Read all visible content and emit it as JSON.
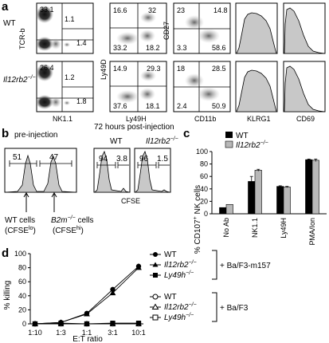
{
  "panels": {
    "a": {
      "label": "a",
      "row_labels": [
        "WT",
        "Il12rb2",
        "−/−"
      ],
      "axes": {
        "p1": {
          "y": "TCR-b",
          "x": "NK1.1"
        },
        "p2": {
          "y": "Ly49D",
          "x": "Ly49H"
        },
        "p3": {
          "y": "CD27",
          "x": "CD11b"
        },
        "p4": {
          "x": "KLRG1"
        },
        "p5": {
          "x": "CD69"
        }
      },
      "wt": {
        "p1": [
          "33.1",
          "1.1",
          "1.4"
        ],
        "p2": [
          "16.6",
          "32",
          "33.2",
          "18.2"
        ],
        "p3": [
          "23",
          "14.8",
          "3.3",
          "58.6"
        ]
      },
      "ko": {
        "p1": [
          "26.4",
          "1.2",
          "1.8"
        ],
        "p2": [
          "14.9",
          "29.3",
          "37.6",
          "18.1"
        ],
        "p3": [
          "18",
          "28.5",
          "2.4",
          "50.9"
        ]
      }
    },
    "b": {
      "label": "b",
      "pre_title": "pre-injection",
      "post_title": "72 hours post-injection",
      "wt_header": "WT",
      "ko_header_main": "Il12rb2",
      "ko_header_sup": "−/−",
      "pre_values": [
        "51",
        "47"
      ],
      "wt_values": [
        "94",
        "3.8"
      ],
      "ko_values": [
        "96",
        "1.5"
      ],
      "xlabel": "CFSE",
      "ann1_line1": "WT cells",
      "ann1_line2_main": "(CFSE",
      "ann1_line2_sub": "lo",
      "ann1_line2_end": ")",
      "ann2_line1_main": "B2m",
      "ann2_line1_sup": "−/−",
      "ann2_line1_end": " cells",
      "ann2_line2_main": "(CFSE",
      "ann2_line2_sub": "hi",
      "ann2_line2_end": ")"
    },
    "c": {
      "label": "c",
      "ylabel_main": "% CD107",
      "ylabel_sup": "+",
      "ylabel_end": " NK cells",
      "legend_wt": "WT",
      "legend_ko_main": "Il12rb2",
      "legend_ko_sup": "−/−"
    },
    "d": {
      "label": "d",
      "ylabel": "% killing",
      "xlabel": "E:T ratio",
      "legend_top": [
        {
          "main": "WT",
          "sup": ""
        },
        {
          "main": "Il12rb2",
          "sup": "−/−"
        },
        {
          "main": "Ly49h",
          "sup": "−/−"
        }
      ],
      "legend_bottom": [
        {
          "main": "WT",
          "sup": ""
        },
        {
          "main": "Il12rb2",
          "sup": "−/−"
        },
        {
          "main": "Ly49h",
          "sup": "−/−"
        }
      ],
      "bracket_top": "+ Ba/F3-m157",
      "bracket_bottom": "+ Ba/F3"
    }
  },
  "chart_data": [
    {
      "type": "bar",
      "categories": [
        "No Ab",
        "NK1.1",
        "Ly49H",
        "PMA/Ion"
      ],
      "series": [
        {
          "name": "WT",
          "values": [
            10,
            52,
            44,
            87
          ],
          "err": [
            0,
            8,
            1,
            1
          ],
          "color": "#000000"
        },
        {
          "name": "Il12rb2−/−",
          "values": [
            15,
            70,
            43,
            86
          ],
          "err": [
            0,
            1.5,
            1,
            2
          ],
          "color": "#b8b8b8"
        }
      ],
      "ylim": [
        0,
        100
      ],
      "yticks": [
        0,
        20,
        40,
        60,
        80,
        100
      ]
    },
    {
      "type": "line",
      "categories": [
        "1:10",
        "1:3",
        "1:1",
        "3:1",
        "10:1"
      ],
      "series": [
        {
          "name": "WT",
          "values": [
            0,
            2,
            15,
            49,
            82
          ],
          "marker": "circle-filled"
        },
        {
          "name": "Il12rb2−/−",
          "values": [
            0,
            2,
            14,
            44,
            80
          ],
          "marker": "triangle-filled"
        },
        {
          "name": "Ly49h−/−",
          "values": [
            0,
            1,
            0,
            1,
            1
          ],
          "marker": "square-filled"
        },
        {
          "name": "WT",
          "values": [
            0,
            0,
            0,
            0,
            0
          ],
          "marker": "circle-open"
        },
        {
          "name": "Il12rb2−/−",
          "values": [
            0,
            0,
            0,
            0,
            0
          ],
          "marker": "triangle-open"
        },
        {
          "name": "Ly49h−/−",
          "values": [
            0,
            0,
            0,
            0,
            0
          ],
          "marker": "square-open"
        }
      ],
      "ylim": [
        0,
        100
      ],
      "yticks": [
        0,
        20,
        40,
        60,
        80,
        100
      ]
    }
  ]
}
